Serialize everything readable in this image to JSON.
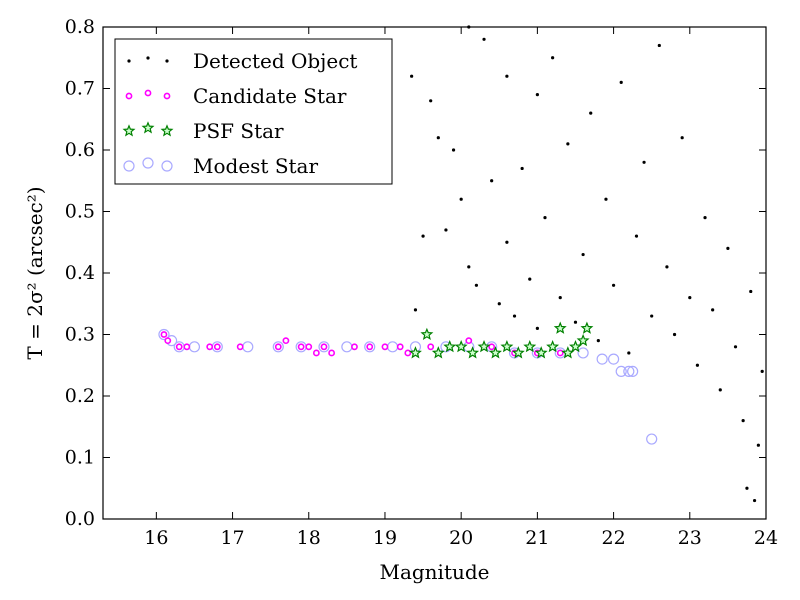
{
  "chart_data": {
    "type": "scatter",
    "xlabel": "Magnitude",
    "ylabel": "T = 2σ² (arcsec²)",
    "xlim": [
      15.3,
      24.0
    ],
    "ylim": [
      0.0,
      0.8
    ],
    "xticks": [
      "16",
      "17",
      "18",
      "19",
      "20",
      "21",
      "22",
      "23",
      "24"
    ],
    "yticks": [
      "0.0",
      "0.1",
      "0.2",
      "0.3",
      "0.4",
      "0.5",
      "0.6",
      "0.7",
      "0.8"
    ],
    "legend_position": "top-left",
    "grid": false,
    "colors": {
      "detected": "#000000",
      "candidate_edge": "#ff00ff",
      "psf_edge": "#008000",
      "psf_fill": "#ccffcc",
      "modest_edge": "#a9a9ff"
    },
    "series": [
      {
        "name": "Detected Object",
        "marker": "dot",
        "points": [
          [
            19.35,
            0.72
          ],
          [
            19.4,
            0.34
          ],
          [
            19.5,
            0.46
          ],
          [
            19.6,
            0.68
          ],
          [
            19.7,
            0.62
          ],
          [
            19.8,
            0.47
          ],
          [
            19.9,
            0.6
          ],
          [
            20.0,
            0.52
          ],
          [
            20.1,
            0.41
          ],
          [
            20.1,
            0.8
          ],
          [
            20.2,
            0.38
          ],
          [
            20.3,
            0.78
          ],
          [
            20.4,
            0.55
          ],
          [
            20.5,
            0.35
          ],
          [
            20.6,
            0.72
          ],
          [
            20.6,
            0.45
          ],
          [
            20.7,
            0.33
          ],
          [
            20.8,
            0.57
          ],
          [
            20.9,
            0.39
          ],
          [
            21.0,
            0.69
          ],
          [
            21.0,
            0.31
          ],
          [
            21.1,
            0.49
          ],
          [
            21.2,
            0.75
          ],
          [
            21.3,
            0.36
          ],
          [
            21.4,
            0.61
          ],
          [
            21.5,
            0.32
          ],
          [
            21.6,
            0.43
          ],
          [
            21.7,
            0.66
          ],
          [
            21.8,
            0.29
          ],
          [
            21.9,
            0.52
          ],
          [
            22.0,
            0.38
          ],
          [
            22.1,
            0.71
          ],
          [
            22.2,
            0.27
          ],
          [
            22.3,
            0.46
          ],
          [
            22.4,
            0.58
          ],
          [
            22.5,
            0.33
          ],
          [
            22.6,
            0.77
          ],
          [
            22.7,
            0.41
          ],
          [
            22.8,
            0.3
          ],
          [
            22.9,
            0.62
          ],
          [
            23.0,
            0.36
          ],
          [
            23.1,
            0.25
          ],
          [
            23.2,
            0.49
          ],
          [
            23.3,
            0.34
          ],
          [
            23.4,
            0.21
          ],
          [
            23.5,
            0.44
          ],
          [
            23.6,
            0.28
          ],
          [
            23.7,
            0.16
          ],
          [
            23.8,
            0.37
          ],
          [
            23.9,
            0.12
          ],
          [
            23.95,
            0.24
          ],
          [
            23.75,
            0.05
          ],
          [
            23.85,
            0.03
          ]
        ]
      },
      {
        "name": "Candidate Star",
        "marker": "circle",
        "points": [
          [
            16.1,
            0.3
          ],
          [
            16.15,
            0.29
          ],
          [
            16.3,
            0.28
          ],
          [
            16.4,
            0.28
          ],
          [
            16.7,
            0.28
          ],
          [
            16.8,
            0.28
          ],
          [
            17.1,
            0.28
          ],
          [
            17.6,
            0.28
          ],
          [
            17.7,
            0.29
          ],
          [
            17.9,
            0.28
          ],
          [
            18.0,
            0.28
          ],
          [
            18.1,
            0.27
          ],
          [
            18.2,
            0.28
          ],
          [
            18.3,
            0.27
          ],
          [
            18.6,
            0.28
          ],
          [
            18.8,
            0.28
          ],
          [
            19.0,
            0.28
          ],
          [
            19.2,
            0.28
          ],
          [
            19.3,
            0.27
          ],
          [
            19.6,
            0.28
          ],
          [
            20.1,
            0.29
          ],
          [
            20.4,
            0.28
          ],
          [
            20.7,
            0.27
          ],
          [
            21.0,
            0.27
          ],
          [
            21.3,
            0.27
          ]
        ]
      },
      {
        "name": "PSF Star",
        "marker": "star",
        "points": [
          [
            19.4,
            0.27
          ],
          [
            19.55,
            0.3
          ],
          [
            19.7,
            0.27
          ],
          [
            19.85,
            0.28
          ],
          [
            20.0,
            0.28
          ],
          [
            20.15,
            0.27
          ],
          [
            20.3,
            0.28
          ],
          [
            20.45,
            0.27
          ],
          [
            20.6,
            0.28
          ],
          [
            20.75,
            0.27
          ],
          [
            20.9,
            0.28
          ],
          [
            21.05,
            0.27
          ],
          [
            21.2,
            0.28
          ],
          [
            21.3,
            0.31
          ],
          [
            21.4,
            0.27
          ],
          [
            21.5,
            0.28
          ],
          [
            21.6,
            0.29
          ],
          [
            21.65,
            0.31
          ]
        ]
      },
      {
        "name": "Modest Star",
        "marker": "open-circle",
        "points": [
          [
            16.1,
            0.3
          ],
          [
            16.2,
            0.29
          ],
          [
            16.3,
            0.28
          ],
          [
            16.5,
            0.28
          ],
          [
            16.8,
            0.28
          ],
          [
            17.2,
            0.28
          ],
          [
            17.6,
            0.28
          ],
          [
            17.9,
            0.28
          ],
          [
            18.2,
            0.28
          ],
          [
            18.5,
            0.28
          ],
          [
            18.8,
            0.28
          ],
          [
            19.1,
            0.28
          ],
          [
            19.4,
            0.28
          ],
          [
            19.8,
            0.28
          ],
          [
            20.1,
            0.28
          ],
          [
            20.4,
            0.28
          ],
          [
            20.7,
            0.27
          ],
          [
            21.0,
            0.27
          ],
          [
            21.3,
            0.27
          ],
          [
            21.6,
            0.27
          ],
          [
            21.85,
            0.26
          ],
          [
            22.0,
            0.26
          ],
          [
            22.1,
            0.24
          ],
          [
            22.2,
            0.24
          ],
          [
            22.25,
            0.24
          ],
          [
            22.5,
            0.13
          ]
        ]
      }
    ]
  }
}
